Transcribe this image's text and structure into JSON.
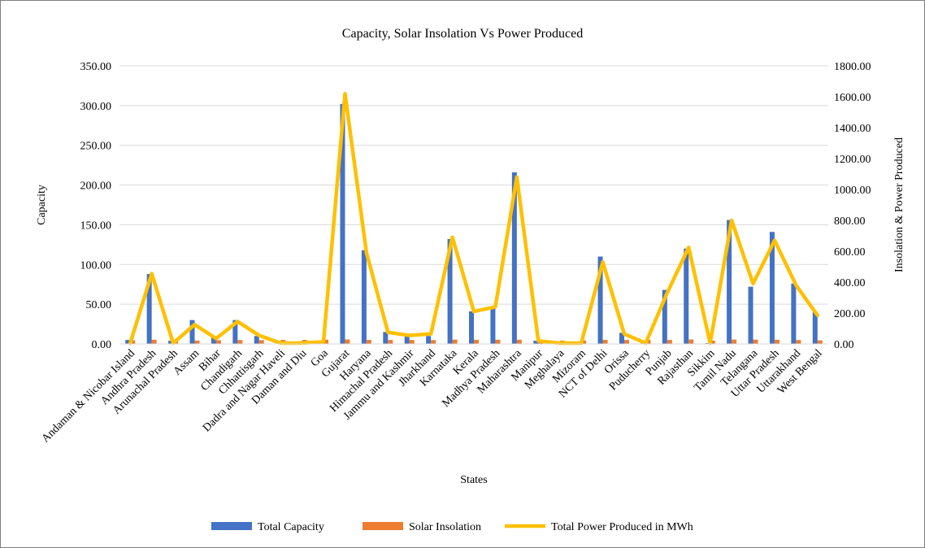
{
  "chart_data": {
    "type": "bar",
    "title": "Capacity, Solar Insolation Vs Power Produced",
    "xlabel": "States",
    "ylabel": "Capacity",
    "y2label": "Insolation & Power Produced",
    "ylim": [
      0,
      350
    ],
    "y2lim": [
      0,
      1800
    ],
    "yticks": [
      "0.00",
      "50.00",
      "100.00",
      "150.00",
      "200.00",
      "250.00",
      "300.00",
      "350.00"
    ],
    "y2ticks": [
      "0.00",
      "200.00",
      "400.00",
      "600.00",
      "800.00",
      "1000.00",
      "1200.00",
      "1400.00",
      "1600.00",
      "1800.00"
    ],
    "grid": true,
    "legend_position": "bottom",
    "categories": [
      "Andaman & Nicobar Island",
      "Andhra Pradesh",
      "Arunachal Pradesh",
      "Assam",
      "Bihar",
      "Chandigarh",
      "Chhattisgarh",
      "Dadra and Nagar Haveli",
      "Daman and Diu",
      "Goa",
      "Gujarat",
      "Haryana",
      "Himachal Pradesh",
      "Jammu and Kashmir",
      "Jharkhand",
      "Karnataka",
      "Kerala",
      "Madhya Pradesh",
      "Maharashtra",
      "Manipur",
      "Meghalaya",
      "Mizoram",
      "NCT of Delhi",
      "Orissa",
      "Puducherry",
      "Punjab",
      "Rajasthan",
      "Sikkim",
      "Tamil Nadu",
      "Telangana",
      "Uttar Pradesh",
      "Uttarakhand",
      "West Bengal"
    ],
    "series": [
      {
        "name": "Total Capacity",
        "type": "bar",
        "axis": "left",
        "color": "#4472c4",
        "values": [
          5,
          88,
          4,
          30,
          8,
          30,
          10,
          1,
          1,
          2,
          302,
          118,
          15,
          10,
          10,
          132,
          41,
          45,
          216,
          4,
          1,
          1,
          110,
          14,
          1,
          68,
          120,
          1,
          156,
          72,
          141,
          76,
          40
        ]
      },
      {
        "name": "Solar Insolation",
        "type": "bar",
        "axis": "left",
        "color": "#ed7d31",
        "values": [
          4.5,
          5.2,
          3.5,
          4.2,
          4.6,
          4.9,
          4.8,
          5.0,
          5.1,
          5.3,
          5.6,
          5.0,
          5.0,
          5.0,
          4.8,
          5.4,
          5.1,
          5.3,
          5.3,
          4.6,
          4.2,
          4.3,
          5.1,
          5.0,
          5.2,
          5.0,
          5.6,
          4.1,
          5.5,
          5.4,
          5.2,
          4.9,
          4.5
        ]
      },
      {
        "name": "Total Power Produced in MWh",
        "type": "line",
        "axis": "right",
        "color": "#ffc000",
        "values": [
          5,
          455,
          5,
          125,
          35,
          145,
          55,
          5,
          5,
          15,
          1620,
          590,
          75,
          55,
          65,
          690,
          210,
          240,
          1080,
          20,
          5,
          5,
          530,
          65,
          5,
          330,
          625,
          5,
          800,
          390,
          670,
          380,
          185
        ]
      }
    ]
  }
}
